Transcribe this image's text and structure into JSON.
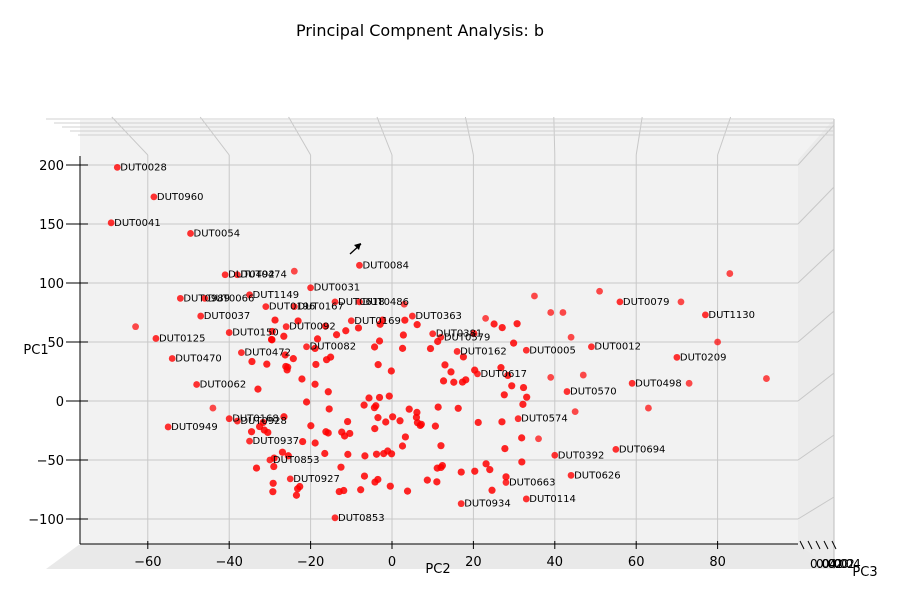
{
  "chart_data": {
    "type": "scatter",
    "title": "Principal Compnent Analysis: b",
    "xlabel": "PC2",
    "ylabel": "PC1",
    "zlabel": "PC3",
    "xlim": [
      -76,
      104
    ],
    "ylim": [
      -120,
      225
    ],
    "xticks": [
      -60,
      -40,
      -20,
      0,
      20,
      40,
      60,
      80
    ],
    "xtick_labels": [
      "−60",
      "−40",
      "−20",
      "0",
      "20",
      "40",
      "60",
      "80"
    ],
    "yticks": [
      200,
      150,
      100,
      50,
      0,
      -50,
      -100
    ],
    "ytick_labels": [
      "200",
      "150",
      "100",
      "50",
      "0",
      "−50",
      "−100"
    ],
    "ztick_labels": [
      "0.04",
      "0.02",
      "0.00",
      "0.02",
      "0.04"
    ],
    "marker_color": "#ff0000",
    "grid": true,
    "points": [
      {
        "label": "DUT0028",
        "x": -67.5,
        "y": 198
      },
      {
        "label": "DUT0960",
        "x": -58.5,
        "y": 173
      },
      {
        "label": "DUT0041",
        "x": -69,
        "y": 151
      },
      {
        "label": "DUT0054",
        "x": -49.5,
        "y": 142
      },
      {
        "label": "DUT0084",
        "x": -8,
        "y": 115
      },
      {
        "label": "DUT0492",
        "x": -41,
        "y": 107
      },
      {
        "label": "DUT0474",
        "x": -38,
        "y": 107
      },
      {
        "label": "DUT0031",
        "x": -20,
        "y": 96
      },
      {
        "label": "DUT1149",
        "x": -35,
        "y": 90
      },
      {
        "label": "DUT0989",
        "x": -52,
        "y": 87
      },
      {
        "label": "DUT0066",
        "x": -46,
        "y": 87
      },
      {
        "label": "DUT0079",
        "x": 56,
        "y": 84
      },
      {
        "label": "DUT0618",
        "x": -14,
        "y": 84
      },
      {
        "label": "DUT0486",
        "x": -8,
        "y": 84
      },
      {
        "label": "DUT0196",
        "x": -31,
        "y": 80
      },
      {
        "label": "DUT0167",
        "x": -24,
        "y": 80
      },
      {
        "label": "DUT1130",
        "x": 77,
        "y": 73
      },
      {
        "label": "DUT0363",
        "x": 5,
        "y": 72
      },
      {
        "label": "DUT0037",
        "x": -47,
        "y": 72
      },
      {
        "label": "DUT0169",
        "x": -10,
        "y": 68
      },
      {
        "label": "DUT0150",
        "x": -40,
        "y": 58
      },
      {
        "label": "DUT0092",
        "x": -26,
        "y": 63
      },
      {
        "label": "DUT0381",
        "x": 10,
        "y": 57
      },
      {
        "label": "DUT0579",
        "x": 12,
        "y": 54
      },
      {
        "label": "DUT0125",
        "x": -58,
        "y": 53
      },
      {
        "label": "DUT0470",
        "x": -54,
        "y": 36
      },
      {
        "label": "DUT0012",
        "x": 49,
        "y": 46
      },
      {
        "label": "DUT0005",
        "x": 33,
        "y": 43
      },
      {
        "label": "DUT0162",
        "x": 16,
        "y": 42
      },
      {
        "label": "DUT0209",
        "x": 70,
        "y": 37
      },
      {
        "label": "DUT0472",
        "x": -37,
        "y": 41
      },
      {
        "label": "DUT0082",
        "x": -21,
        "y": 46
      },
      {
        "label": "DUT0062",
        "x": -48,
        "y": 14
      },
      {
        "label": "DUT0617",
        "x": 21,
        "y": 23
      },
      {
        "label": "DUT0570",
        "x": 43,
        "y": 8
      },
      {
        "label": "DUT0498",
        "x": 59,
        "y": 15
      },
      {
        "label": "DUT0574",
        "x": 31,
        "y": -15
      },
      {
        "label": "DUT0168",
        "x": -40,
        "y": -15
      },
      {
        "label": "DUT0928",
        "x": -38,
        "y": -17
      },
      {
        "label": "DUT0949",
        "x": -55,
        "y": -22
      },
      {
        "label": "DUT0937",
        "x": -35,
        "y": -34
      },
      {
        "label": "DUT0694",
        "x": 55,
        "y": -41
      },
      {
        "label": "DUT0392",
        "x": 40,
        "y": -46
      },
      {
        "label": "DUT0853",
        "x": -30,
        "y": -50
      },
      {
        "label": "DUT0927",
        "x": -25,
        "y": -66
      },
      {
        "label": "DUT0626",
        "x": 44,
        "y": -63
      },
      {
        "label": "DUT0663",
        "x": 28,
        "y": -69
      },
      {
        "label": "DUT0114",
        "x": 33,
        "y": -83
      },
      {
        "label": "DUT0934",
        "x": 17,
        "y": -87
      },
      {
        "label": "DUT0853",
        "x": -14,
        "y": -99
      }
    ],
    "extra_points": [
      [
        -24,
        110
      ],
      [
        -63,
        63
      ],
      [
        3,
        82
      ],
      [
        23,
        70
      ],
      [
        35,
        89
      ],
      [
        39,
        75
      ],
      [
        42,
        75
      ],
      [
        51,
        93
      ],
      [
        71,
        84
      ],
      [
        83,
        108
      ],
      [
        80,
        50
      ],
      [
        92,
        19
      ],
      [
        73,
        15
      ],
      [
        63,
        -6
      ],
      [
        45,
        -9
      ],
      [
        36,
        -32
      ],
      [
        44,
        54
      ],
      [
        47,
        22
      ],
      [
        39,
        20
      ],
      [
        -44,
        -6
      ]
    ]
  }
}
